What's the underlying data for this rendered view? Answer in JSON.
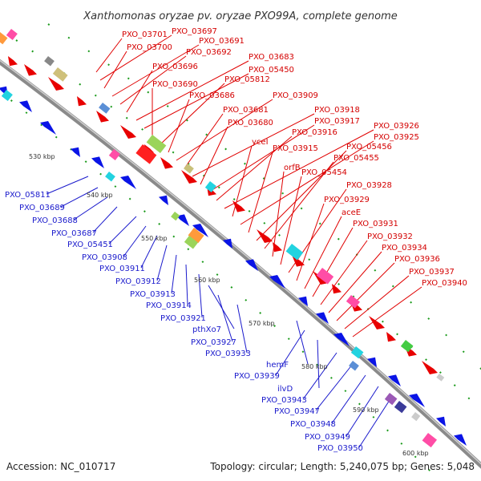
{
  "title": "Xanthomonas oryzae pv. oryzae PXO99A, complete genome",
  "footer": {
    "accession": "Accession: NC_010717",
    "summary": "Topology: circular; Length: 5,240,075 bp; Genes: 5,048"
  },
  "kbp_ticks": [
    "530 kbp",
    "540 kbp",
    "550 kbp",
    "560 kbp",
    "570 kbp",
    "580 kbp",
    "590 kbp",
    "600 kbp"
  ],
  "red_labels": [
    "PXO_03701",
    "PXO_03697",
    "PXO_03700",
    "PXO_03691",
    "PXO_03692",
    "PXO_03696",
    "PXO_03683",
    "PXO_05450",
    "PXO_03690",
    "PXO_05812",
    "PXO_03686",
    "PXO_03909",
    "PXO_03681",
    "PXO_03918",
    "PXO_03680",
    "PXO_03917",
    "PXO_03916",
    "PXO_03926",
    "yceI",
    "PXO_03925",
    "PXO_03915",
    "PXO_05456",
    "PXO_05455",
    "orfB",
    "PXO_05454",
    "PXO_03928",
    "PXO_03929",
    "aceE",
    "PXO_03931",
    "PXO_03932",
    "PXO_03934",
    "PXO_03936",
    "PXO_03937",
    "PXO_03940"
  ],
  "blue_labels": [
    "PXO_05811",
    "PXO_03689",
    "PXO_03688",
    "PXO_03687",
    "PXO_05451",
    "PXO_03908",
    "PXO_03911",
    "PXO_03912",
    "PXO_03913",
    "PXO_03914",
    "PXO_03921",
    "pthXo7",
    "PXO_03927",
    "PXO_03933",
    "hemF",
    "PXO_03939",
    "ilvD",
    "PXO_03943",
    "PXO_03947",
    "PXO_03948",
    "PXO_03949",
    "PXO_03950"
  ],
  "colors": {
    "forward": "#e80000",
    "reverse": "#0a14e6",
    "backbone": "#888888",
    "tick": "#1a9a1a"
  }
}
